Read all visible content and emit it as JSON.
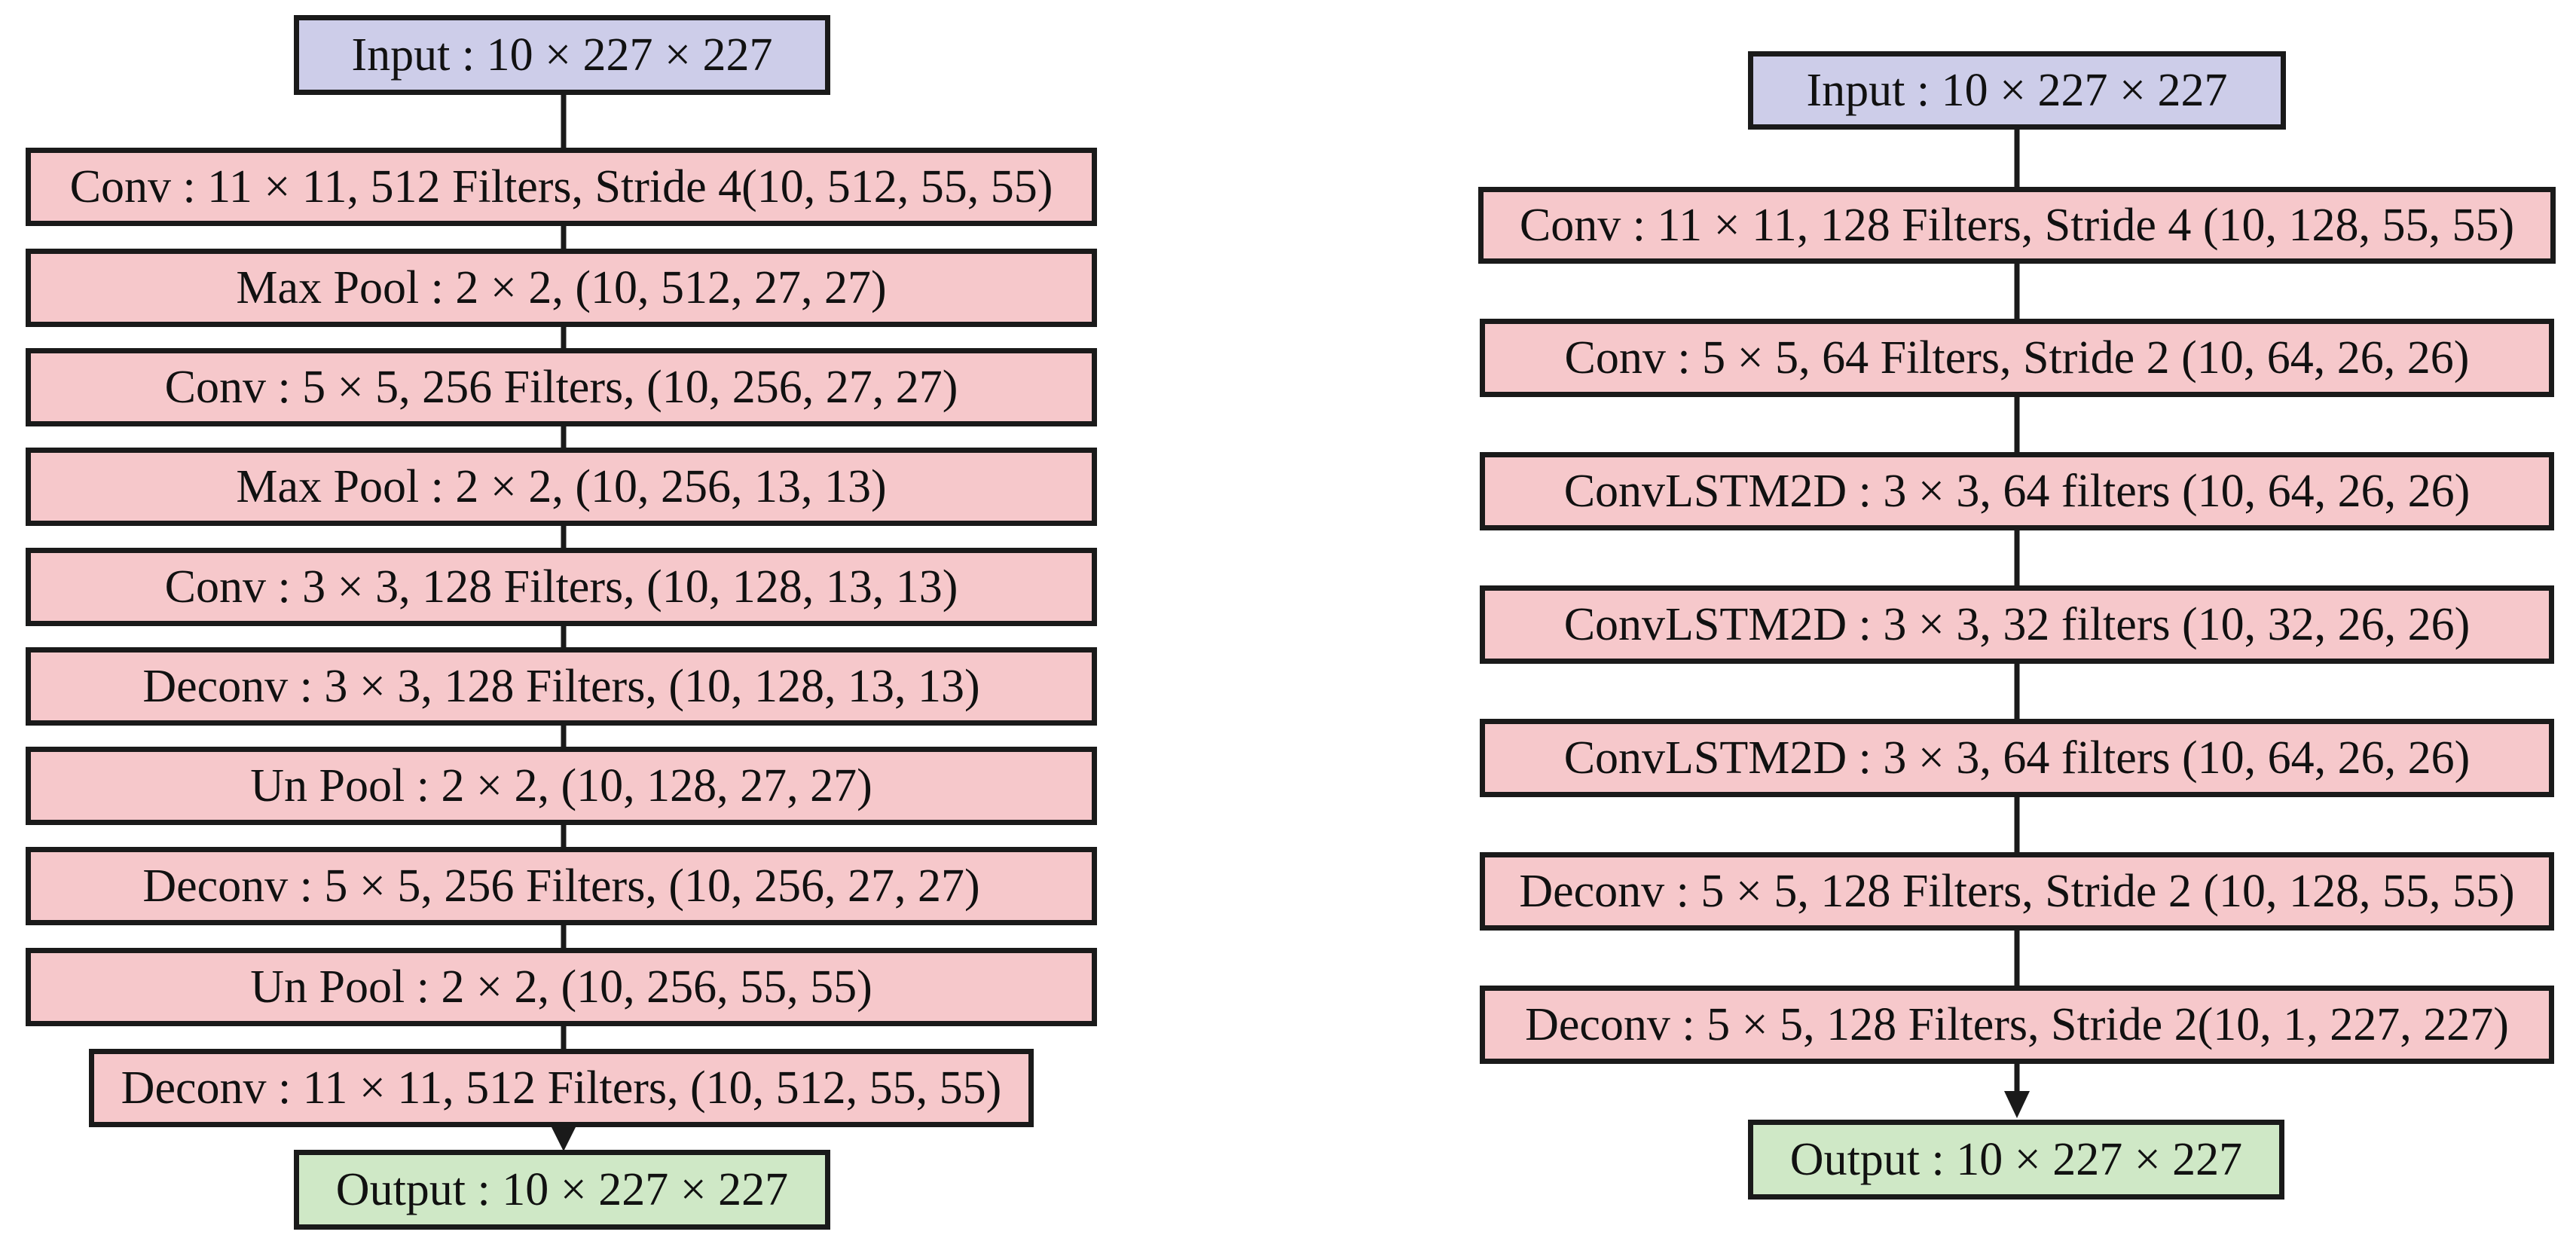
{
  "colors": {
    "input_fill": "#cdcde9",
    "layer_fill": "#f6c8cb",
    "output_fill": "#cfe8c6",
    "stroke": "#1a1a1a"
  },
  "left_network": {
    "input": "Input : 10 × 227 × 227",
    "layers": [
      "Conv : 11 × 11, 512 Filters, Stride 4(10, 512, 55, 55)",
      "Max Pool : 2 × 2, (10, 512, 27, 27)",
      "Conv : 5 × 5, 256 Filters, (10, 256, 27, 27)",
      "Max Pool : 2 × 2, (10, 256, 13, 13)",
      "Conv : 3 × 3, 128 Filters, (10, 128, 13, 13)",
      "Deconv : 3 × 3, 128 Filters, (10, 128, 13, 13)",
      "Un Pool : 2 × 2, (10, 128, 27, 27)",
      "Deconv : 5 × 5, 256 Filters, (10, 256, 27, 27)",
      "Un Pool : 2 × 2, (10, 256, 55, 55)",
      "Deconv : 11 × 11, 512 Filters, (10, 512, 55, 55)"
    ],
    "output": "Output : 10 × 227 × 227"
  },
  "right_network": {
    "input": "Input : 10 × 227 × 227",
    "layers": [
      "Conv : 11 × 11, 128 Filters, Stride 4 (10, 128, 55, 55)",
      "Conv : 5 × 5, 64 Filters, Stride 2 (10, 64, 26, 26)",
      "ConvLSTM2D : 3 × 3, 64 filters (10, 64, 26, 26)",
      "ConvLSTM2D : 3 × 3, 32 filters (10, 32, 26, 26)",
      "ConvLSTM2D : 3 × 3, 64 filters (10, 64, 26, 26)",
      "Deconv : 5 × 5, 128 Filters, Stride 2 (10, 128, 55, 55)",
      "Deconv : 5 × 5, 128 Filters, Stride 2(10, 1, 227, 227)"
    ],
    "output": "Output : 10 × 227 × 227"
  }
}
